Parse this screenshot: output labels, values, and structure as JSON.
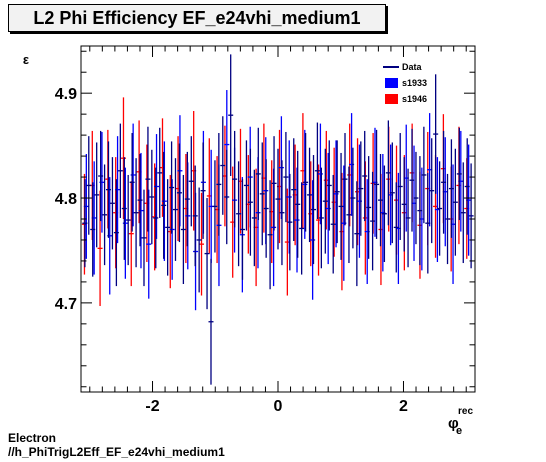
{
  "title": "L2 Phi Efficiency EF_e24vhi_medium1",
  "footer": {
    "line1": "Electron",
    "line2": "//h_PhiTrigL2Eff_EF_e24vhi_medium1"
  },
  "chart_data": {
    "type": "scatter",
    "title": "L2 Phi Efficiency EF_e24vhi_medium1",
    "ylabel": "ε",
    "xlabel_main": "φ",
    "xlabel_sup": "rec",
    "xlabel_sub": "e",
    "xlim": [
      -3.14,
      3.14
    ],
    "ylim": [
      4.615,
      4.945
    ],
    "xticks": [
      -2,
      0,
      2
    ],
    "xtick_labels": [
      "-2",
      "0",
      "2"
    ],
    "yticks": [
      4.7,
      4.8,
      4.9
    ],
    "ytick_labels": [
      "4.7",
      "4.8",
      "4.9"
    ],
    "legend_position": "top-right",
    "legend": [
      {
        "label": "Data",
        "style": "line",
        "color": "#000080"
      },
      {
        "label": "s1933",
        "style": "fill",
        "color": "#0000ff"
      },
      {
        "label": "s1946",
        "style": "fill",
        "color": "#ff0000"
      }
    ],
    "series": [
      {
        "name": "s1946",
        "color": "#ff0000",
        "x": [
          -3.085,
          -2.96,
          -2.836,
          -2.712,
          -2.587,
          -2.463,
          -2.339,
          -2.214,
          -2.09,
          -1.966,
          -1.841,
          -1.717,
          -1.593,
          -1.468,
          -1.344,
          -1.219,
          -1.095,
          -0.971,
          -0.846,
          -0.722,
          -0.598,
          -0.473,
          -0.349,
          -0.225,
          -0.1,
          0.024,
          0.149,
          0.273,
          0.397,
          0.522,
          0.646,
          0.77,
          0.895,
          1.019,
          1.143,
          1.268,
          1.392,
          1.516,
          1.641,
          1.765,
          1.889,
          2.014,
          2.138,
          2.263,
          2.387,
          2.511,
          2.636,
          2.76,
          2.884,
          3.009
        ],
        "y": [
          4.775,
          4.812,
          4.752,
          4.818,
          4.786,
          4.838,
          4.766,
          4.825,
          4.795,
          4.782,
          4.829,
          4.768,
          4.809,
          4.79,
          4.826,
          4.756,
          4.802,
          4.789,
          4.821,
          4.777,
          4.816,
          4.794,
          4.772,
          4.819,
          4.787,
          4.811,
          4.758,
          4.803,
          4.826,
          4.785,
          4.779,
          4.817,
          4.796,
          4.768,
          4.822,
          4.806,
          4.781,
          4.814,
          4.77,
          4.818,
          4.798,
          4.786,
          4.824,
          4.774,
          4.809,
          4.792,
          4.828,
          4.78,
          4.812,
          4.79
        ],
        "err": [
          0.048,
          0.052,
          0.055,
          0.047,
          0.053,
          0.058,
          0.05,
          0.049,
          0.056,
          0.051,
          0.047,
          0.054,
          0.05,
          0.052,
          0.057,
          0.049,
          0.055,
          0.051,
          0.048,
          0.053,
          0.05,
          0.047,
          0.056,
          0.052,
          0.049,
          0.054,
          0.051,
          0.048,
          0.055,
          0.05,
          0.053,
          0.047,
          0.052,
          0.056,
          0.049,
          0.051,
          0.054,
          0.048,
          0.053,
          0.05,
          0.052,
          0.055,
          0.047,
          0.051,
          0.054,
          0.049,
          0.052,
          0.05,
          0.056,
          0.048
        ]
      },
      {
        "name": "s1933",
        "color": "#0000ff",
        "x": [
          -3.055,
          -2.93,
          -2.806,
          -2.682,
          -2.557,
          -2.433,
          -2.309,
          -2.184,
          -2.06,
          -1.936,
          -1.811,
          -1.687,
          -1.563,
          -1.438,
          -1.314,
          -1.189,
          -1.065,
          -0.941,
          -0.816,
          -0.692,
          -0.568,
          -0.443,
          -0.319,
          -0.195,
          -0.07,
          0.054,
          0.179,
          0.303,
          0.427,
          0.552,
          0.676,
          0.8,
          0.925,
          1.049,
          1.173,
          1.298,
          1.422,
          1.546,
          1.671,
          1.795,
          1.919,
          2.044,
          2.168,
          2.293,
          2.417,
          2.541,
          2.666,
          2.79,
          2.914,
          3.039
        ],
        "y": [
          4.792,
          4.781,
          4.815,
          4.764,
          4.808,
          4.776,
          4.822,
          4.788,
          4.756,
          4.811,
          4.797,
          4.77,
          4.826,
          4.783,
          4.749,
          4.815,
          4.792,
          4.774,
          4.851,
          4.798,
          4.765,
          4.82,
          4.786,
          4.807,
          4.772,
          4.829,
          4.801,
          4.779,
          4.813,
          4.76,
          4.823,
          4.79,
          4.804,
          4.776,
          4.832,
          4.797,
          4.768,
          4.815,
          4.786,
          4.803,
          4.771,
          4.819,
          4.795,
          4.78,
          4.827,
          4.789,
          4.806,
          4.775,
          4.816,
          4.798
        ],
        "err": [
          0.05,
          0.054,
          0.048,
          0.056,
          0.051,
          0.053,
          0.049,
          0.055,
          0.052,
          0.05,
          0.057,
          0.048,
          0.053,
          0.051,
          0.056,
          0.049,
          0.054,
          0.058,
          0.052,
          0.05,
          0.055,
          0.048,
          0.053,
          0.051,
          0.056,
          0.049,
          0.054,
          0.05,
          0.052,
          0.057,
          0.048,
          0.053,
          0.051,
          0.055,
          0.049,
          0.054,
          0.05,
          0.052,
          0.056,
          0.048,
          0.053,
          0.051,
          0.055,
          0.049,
          0.054,
          0.05,
          0.052,
          0.057,
          0.048,
          0.053
        ]
      },
      {
        "name": "Data",
        "color": "#000080",
        "x": [
          -3.078,
          -3.016,
          -2.953,
          -2.89,
          -2.827,
          -2.764,
          -2.702,
          -2.639,
          -2.576,
          -2.513,
          -2.45,
          -2.388,
          -2.325,
          -2.262,
          -2.199,
          -2.136,
          -2.073,
          -2.011,
          -1.948,
          -1.885,
          -1.822,
          -1.759,
          -1.696,
          -1.634,
          -1.571,
          -1.508,
          -1.445,
          -1.382,
          -1.32,
          -1.257,
          -1.194,
          -1.131,
          -1.068,
          -1.005,
          -0.943,
          -0.88,
          -0.817,
          -0.754,
          -0.691,
          -0.628,
          -0.566,
          -0.503,
          -0.44,
          -0.377,
          -0.314,
          -0.251,
          -0.189,
          -0.126,
          -0.063,
          0.0,
          0.063,
          0.126,
          0.189,
          0.251,
          0.314,
          0.377,
          0.44,
          0.503,
          0.566,
          0.628,
          0.691,
          0.754,
          0.817,
          0.88,
          0.943,
          1.005,
          1.068,
          1.131,
          1.194,
          1.257,
          1.32,
          1.382,
          1.445,
          1.508,
          1.571,
          1.634,
          1.696,
          1.759,
          1.822,
          1.885,
          1.948,
          2.011,
          2.073,
          2.136,
          2.199,
          2.262,
          2.325,
          2.388,
          2.45,
          2.513,
          2.576,
          2.639,
          2.702,
          2.764,
          2.827,
          2.89,
          2.953,
          3.016,
          3.078
        ],
        "y": [
          4.776,
          4.812,
          4.77,
          4.803,
          4.821,
          4.784,
          4.808,
          4.795,
          4.767,
          4.826,
          4.79,
          4.779,
          4.815,
          4.786,
          4.798,
          4.762,
          4.818,
          4.801,
          4.781,
          4.824,
          4.793,
          4.772,
          4.81,
          4.789,
          4.805,
          4.77,
          4.799,
          4.816,
          4.783,
          4.76,
          4.807,
          4.747,
          4.682,
          4.792,
          4.813,
          4.831,
          4.801,
          4.879,
          4.818,
          4.785,
          4.77,
          4.812,
          4.796,
          4.781,
          4.823,
          4.804,
          4.79,
          4.765,
          4.814,
          4.799,
          4.786,
          4.82,
          4.777,
          4.808,
          4.794,
          4.771,
          4.815,
          4.803,
          4.789,
          4.826,
          4.781,
          4.797,
          4.812,
          4.775,
          4.806,
          4.792,
          4.818,
          4.784,
          4.8,
          4.766,
          4.809,
          4.821,
          4.791,
          4.778,
          4.813,
          4.798,
          4.785,
          4.824,
          4.805,
          4.772,
          4.811,
          4.794,
          4.781,
          4.817,
          4.8,
          4.788,
          4.822,
          4.776,
          4.807,
          4.861,
          4.79,
          4.815,
          4.78,
          4.809,
          4.796,
          4.823,
          4.786,
          4.811,
          4.783
        ],
        "err": [
          0.042,
          0.047,
          0.045,
          0.05,
          0.043,
          0.048,
          0.046,
          0.044,
          0.051,
          0.045,
          0.049,
          0.043,
          0.047,
          0.052,
          0.044,
          0.046,
          0.05,
          0.045,
          0.048,
          0.043,
          0.051,
          0.046,
          0.044,
          0.049,
          0.047,
          0.052,
          0.045,
          0.043,
          0.048,
          0.05,
          0.046,
          0.053,
          0.06,
          0.044,
          0.049,
          0.047,
          0.045,
          0.058,
          0.046,
          0.05,
          0.048,
          0.043,
          0.051,
          0.046,
          0.044,
          0.049,
          0.047,
          0.052,
          0.045,
          0.048,
          0.05,
          0.043,
          0.046,
          0.049,
          0.051,
          0.044,
          0.047,
          0.045,
          0.052,
          0.046,
          0.048,
          0.05,
          0.043,
          0.047,
          0.049,
          0.051,
          0.044,
          0.046,
          0.048,
          0.05,
          0.045,
          0.043,
          0.049,
          0.047,
          0.052,
          0.044,
          0.046,
          0.05,
          0.048,
          0.043,
          0.051,
          0.045,
          0.047,
          0.049,
          0.044,
          0.052,
          0.046,
          0.048,
          0.05,
          0.057,
          0.045,
          0.049,
          0.043,
          0.047,
          0.051,
          0.044,
          0.048,
          0.046,
          0.05
        ]
      }
    ]
  }
}
